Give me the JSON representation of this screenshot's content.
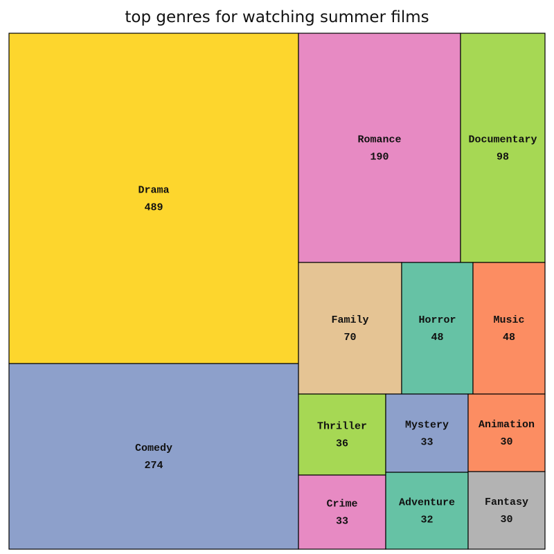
{
  "chart_data": {
    "type": "treemap",
    "title": "top genres for watching summer films",
    "items": [
      {
        "label": "Drama",
        "value": 489,
        "color": "#fdd62d"
      },
      {
        "label": "Comedy",
        "value": 274,
        "color": "#8da0cb"
      },
      {
        "label": "Romance",
        "value": 190,
        "color": "#e78ac3"
      },
      {
        "label": "Documentary",
        "value": 98,
        "color": "#a6d854"
      },
      {
        "label": "Family",
        "value": 70,
        "color": "#e5c494"
      },
      {
        "label": "Horror",
        "value": 48,
        "color": "#66c2a5"
      },
      {
        "label": "Music",
        "value": 48,
        "color": "#fc8d62"
      },
      {
        "label": "Thriller",
        "value": 36,
        "color": "#a6d854"
      },
      {
        "label": "Mystery",
        "value": 33,
        "color": "#8da0cb"
      },
      {
        "label": "Animation",
        "value": 30,
        "color": "#fc8d62"
      },
      {
        "label": "Crime",
        "value": 33,
        "color": "#e78ac3"
      },
      {
        "label": "Adventure",
        "value": 32,
        "color": "#66c2a5"
      },
      {
        "label": "Fantasy",
        "value": 30,
        "color": "#b3b3b3"
      }
    ]
  }
}
